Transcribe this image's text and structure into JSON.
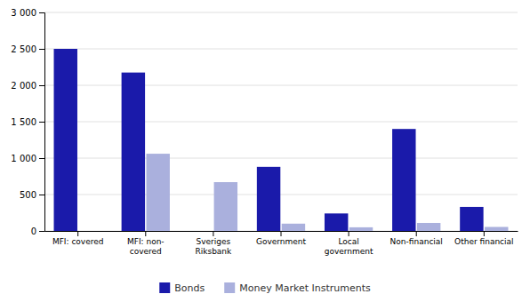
{
  "chart_data": {
    "type": "bar",
    "categories": [
      "MFI: covered",
      "MFI: non-\ncovered",
      "Sveriges\nRiksbank",
      "Government",
      "Local\ngovernment",
      "Non-financial",
      "Other financial"
    ],
    "series": [
      {
        "name": "Bonds",
        "color": "#1a1aaa",
        "values": [
          2500,
          2175,
          0,
          880,
          240,
          1400,
          330
        ]
      },
      {
        "name": "Money Market Instruments",
        "color": "#aab0dd",
        "values": [
          0,
          1060,
          670,
          100,
          50,
          110,
          55
        ]
      }
    ],
    "ylim": [
      0,
      3000
    ],
    "yticks": [
      0,
      500,
      {
        "value": 1000,
        "label": "1 000"
      },
      {
        "value": 1500,
        "label": "1 500"
      },
      {
        "value": 2000,
        "label": "2 000"
      },
      {
        "value": 2500,
        "label": "2 500"
      },
      {
        "value": 3000,
        "label": "3 000"
      }
    ],
    "grid": true,
    "legend": "bottom"
  }
}
